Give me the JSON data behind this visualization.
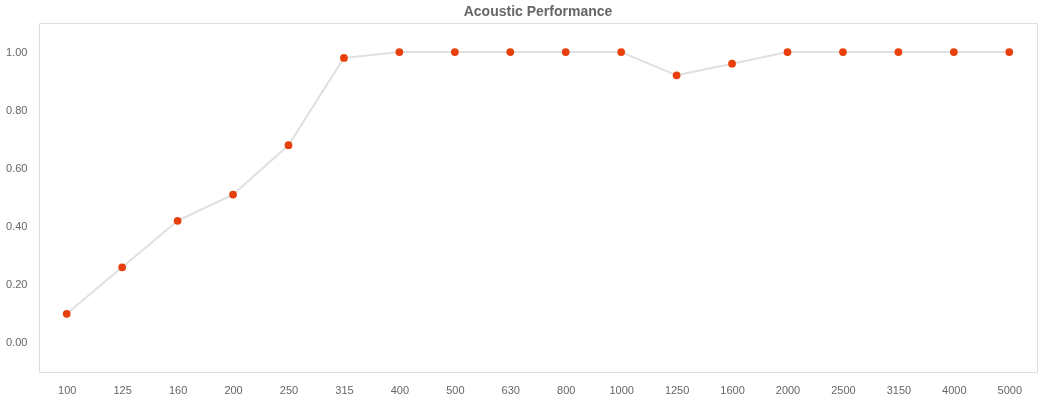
{
  "chart_data": {
    "type": "line",
    "title": "Acoustic Performance",
    "categories": [
      "100",
      "125",
      "160",
      "200",
      "250",
      "315",
      "400",
      "500",
      "630",
      "800",
      "1000",
      "1250",
      "1600",
      "2000",
      "2500",
      "3150",
      "4000",
      "5000"
    ],
    "series": [
      {
        "color": "#e8400c",
        "values": [
          0.1,
          0.26,
          0.42,
          0.51,
          0.68,
          0.98,
          1.0,
          1.0,
          1.0,
          1.0,
          1.0,
          0.92,
          0.96,
          1.0,
          1.0,
          1.0,
          1.0,
          1.0
        ]
      }
    ],
    "ylim": [
      -0.1,
      1.1
    ],
    "yticks": [
      {
        "value": 0,
        "label": "0.00"
      },
      {
        "value": 0.2,
        "label": "0.20"
      },
      {
        "value": 0.4,
        "label": "0.40"
      },
      {
        "value": 0.6,
        "label": "0.60"
      },
      {
        "value": 0.8,
        "label": "0.80"
      },
      {
        "value": 1,
        "label": "1.00"
      }
    ],
    "marker": "circle",
    "grid": false,
    "legend": false
  }
}
